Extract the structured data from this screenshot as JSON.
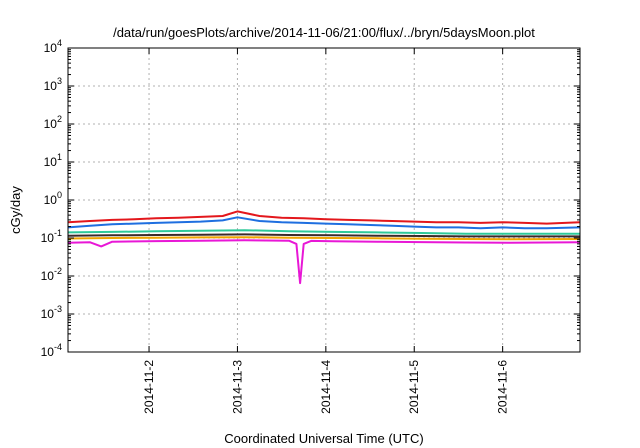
{
  "chart_data": {
    "type": "line",
    "title": "/data/run/goesPlots/archive/2014-11-06/21:00/flux/../bryn/5daysMoon.plot",
    "xlabel": "Coordinated Universal Time (UTC)",
    "ylabel": "cGy/day",
    "y_scale": "log",
    "ylim": [
      0.0001,
      10000
    ],
    "y_ticks": [
      {
        "value": 0.0001,
        "base": "10",
        "exp": "-4"
      },
      {
        "value": 0.001,
        "base": "10",
        "exp": "-3"
      },
      {
        "value": 0.01,
        "base": "10",
        "exp": "-2"
      },
      {
        "value": 0.1,
        "base": "10",
        "exp": "-1"
      },
      {
        "value": 1,
        "base": "10",
        "exp": "0"
      },
      {
        "value": 10,
        "base": "10",
        "exp": "1"
      },
      {
        "value": 100,
        "base": "10",
        "exp": "2"
      },
      {
        "value": 1000,
        "base": "10",
        "exp": "3"
      },
      {
        "value": 10000,
        "base": "10",
        "exp": "4"
      }
    ],
    "xlim": [
      "2014-11-01T02:00",
      "2014-11-06T21:00"
    ],
    "x_ticks": [
      "2014-11-2",
      "2014-11-3",
      "2014-11-4",
      "2014-11-5",
      "2014-11-6"
    ],
    "grid": true,
    "series": [
      {
        "color": "#e3171c",
        "values": [
          [
            "2014-11-01T02:00",
            0.26
          ],
          [
            "2014-11-01T08:00",
            0.28
          ],
          [
            "2014-11-01T14:00",
            0.3
          ],
          [
            "2014-11-01T20:00",
            0.31
          ],
          [
            "2014-11-02T02:00",
            0.33
          ],
          [
            "2014-11-02T08:00",
            0.34
          ],
          [
            "2014-11-02T14:00",
            0.36
          ],
          [
            "2014-11-02T20:00",
            0.38
          ],
          [
            "2014-11-03T00:00",
            0.5
          ],
          [
            "2014-11-03T06:00",
            0.38
          ],
          [
            "2014-11-03T12:00",
            0.34
          ],
          [
            "2014-11-03T18:00",
            0.33
          ],
          [
            "2014-11-04T00:00",
            0.31
          ],
          [
            "2014-11-04T06:00",
            0.3
          ],
          [
            "2014-11-04T12:00",
            0.29
          ],
          [
            "2014-11-04T18:00",
            0.28
          ],
          [
            "2014-11-05T00:00",
            0.27
          ],
          [
            "2014-11-05T06:00",
            0.26
          ],
          [
            "2014-11-05T12:00",
            0.26
          ],
          [
            "2014-11-05T18:00",
            0.25
          ],
          [
            "2014-11-06T00:00",
            0.26
          ],
          [
            "2014-11-06T06:00",
            0.25
          ],
          [
            "2014-11-06T12:00",
            0.24
          ],
          [
            "2014-11-06T21:00",
            0.26
          ]
        ]
      },
      {
        "color": "#1f6fe0",
        "values": [
          [
            "2014-11-01T02:00",
            0.19
          ],
          [
            "2014-11-01T08:00",
            0.21
          ],
          [
            "2014-11-01T14:00",
            0.23
          ],
          [
            "2014-11-01T20:00",
            0.24
          ],
          [
            "2014-11-02T02:00",
            0.25
          ],
          [
            "2014-11-02T08:00",
            0.26
          ],
          [
            "2014-11-02T14:00",
            0.27
          ],
          [
            "2014-11-02T20:00",
            0.29
          ],
          [
            "2014-11-03T00:00",
            0.35
          ],
          [
            "2014-11-03T06:00",
            0.28
          ],
          [
            "2014-11-03T12:00",
            0.26
          ],
          [
            "2014-11-03T18:00",
            0.25
          ],
          [
            "2014-11-04T00:00",
            0.24
          ],
          [
            "2014-11-04T06:00",
            0.23
          ],
          [
            "2014-11-04T12:00",
            0.22
          ],
          [
            "2014-11-04T18:00",
            0.21
          ],
          [
            "2014-11-05T00:00",
            0.2
          ],
          [
            "2014-11-05T06:00",
            0.19
          ],
          [
            "2014-11-05T12:00",
            0.19
          ],
          [
            "2014-11-05T18:00",
            0.18
          ],
          [
            "2014-11-06T00:00",
            0.19
          ],
          [
            "2014-11-06T06:00",
            0.18
          ],
          [
            "2014-11-06T12:00",
            0.18
          ],
          [
            "2014-11-06T21:00",
            0.19
          ]
        ]
      },
      {
        "color": "#2ec99a",
        "values": [
          [
            "2014-11-01T02:00",
            0.14
          ],
          [
            "2014-11-01T14:00",
            0.145
          ],
          [
            "2014-11-02T02:00",
            0.15
          ],
          [
            "2014-11-02T14:00",
            0.155
          ],
          [
            "2014-11-03T02:00",
            0.16
          ],
          [
            "2014-11-03T14:00",
            0.15
          ],
          [
            "2014-11-04T02:00",
            0.145
          ],
          [
            "2014-11-04T14:00",
            0.14
          ],
          [
            "2014-11-05T02:00",
            0.135
          ],
          [
            "2014-11-05T14:00",
            0.13
          ],
          [
            "2014-11-06T02:00",
            0.13
          ],
          [
            "2014-11-06T21:00",
            0.13
          ]
        ]
      },
      {
        "color": "#3a2a2a",
        "values": [
          [
            "2014-11-01T02:00",
            0.115
          ],
          [
            "2014-11-01T14:00",
            0.118
          ],
          [
            "2014-11-02T02:00",
            0.12
          ],
          [
            "2014-11-02T14:00",
            0.122
          ],
          [
            "2014-11-03T02:00",
            0.124
          ],
          [
            "2014-11-03T14:00",
            0.12
          ],
          [
            "2014-11-04T02:00",
            0.118
          ],
          [
            "2014-11-04T14:00",
            0.115
          ],
          [
            "2014-11-05T02:00",
            0.113
          ],
          [
            "2014-11-05T14:00",
            0.11
          ],
          [
            "2014-11-06T02:00",
            0.11
          ],
          [
            "2014-11-06T21:00",
            0.11
          ]
        ]
      },
      {
        "color": "#f0a500",
        "values": [
          [
            "2014-11-01T02:00",
            0.097
          ],
          [
            "2014-11-01T14:00",
            0.1
          ],
          [
            "2014-11-02T02:00",
            0.102
          ],
          [
            "2014-11-02T14:00",
            0.104
          ],
          [
            "2014-11-03T02:00",
            0.105
          ],
          [
            "2014-11-03T14:00",
            0.102
          ],
          [
            "2014-11-04T02:00",
            0.1
          ],
          [
            "2014-11-04T14:00",
            0.098
          ],
          [
            "2014-11-05T02:00",
            0.096
          ],
          [
            "2014-11-05T14:00",
            0.094
          ],
          [
            "2014-11-06T02:00",
            0.093
          ],
          [
            "2014-11-06T21:00",
            0.094
          ]
        ]
      },
      {
        "color": "#e817d6",
        "values": [
          [
            "2014-11-01T02:00",
            0.075
          ],
          [
            "2014-11-01T08:00",
            0.077
          ],
          [
            "2014-11-01T11:00",
            0.06
          ],
          [
            "2014-11-01T14:00",
            0.08
          ],
          [
            "2014-11-02T02:00",
            0.083
          ],
          [
            "2014-11-02T14:00",
            0.085
          ],
          [
            "2014-11-03T02:00",
            0.087
          ],
          [
            "2014-11-03T14:00",
            0.085
          ],
          [
            "2014-11-03T16:00",
            0.07
          ],
          [
            "2014-11-03T17:00",
            0.0065
          ],
          [
            "2014-11-03T18:00",
            0.07
          ],
          [
            "2014-11-03T20:00",
            0.084
          ],
          [
            "2014-11-04T02:00",
            0.082
          ],
          [
            "2014-11-04T14:00",
            0.08
          ],
          [
            "2014-11-05T02:00",
            0.078
          ],
          [
            "2014-11-05T14:00",
            0.076
          ],
          [
            "2014-11-06T02:00",
            0.075
          ],
          [
            "2014-11-06T21:00",
            0.077
          ]
        ]
      }
    ]
  }
}
